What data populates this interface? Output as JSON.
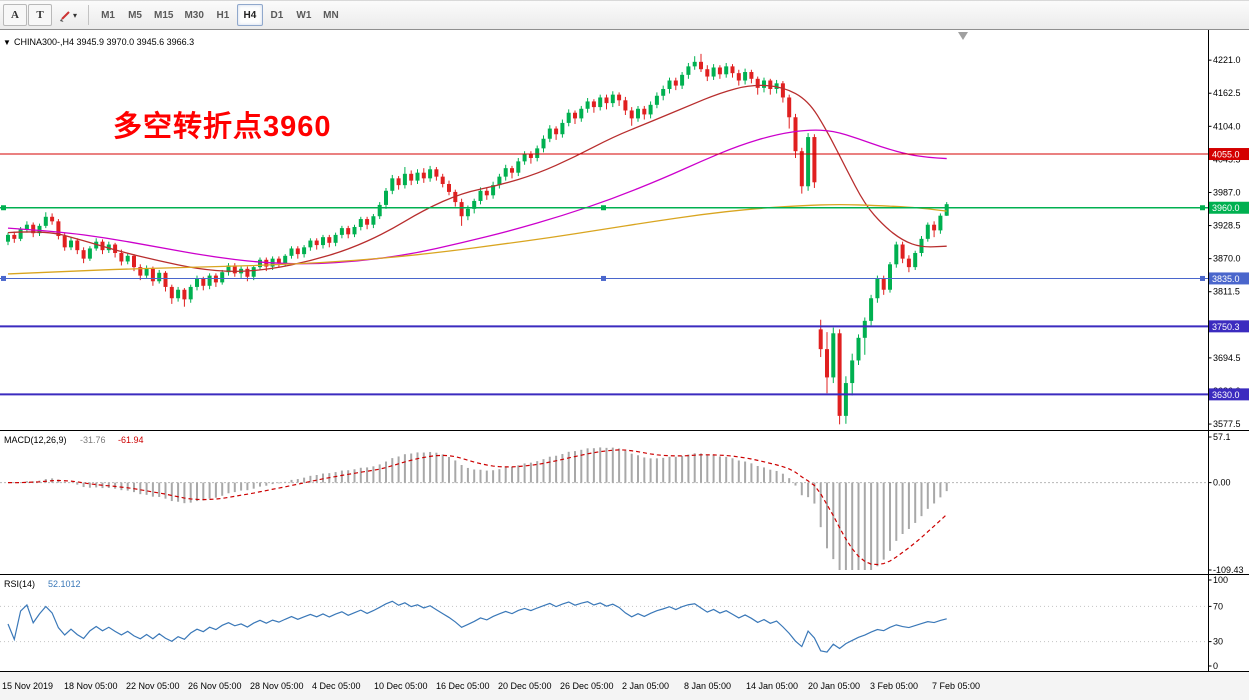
{
  "toolbar": {
    "tool_buttons": [
      "A",
      "T"
    ],
    "draw_button": {
      "icon": "pen-icon",
      "caret": "▾"
    },
    "timeframes": [
      "M1",
      "M5",
      "M15",
      "M30",
      "H1",
      "H4",
      "D1",
      "W1",
      "MN"
    ],
    "active_timeframe": "H4"
  },
  "chart_header": {
    "collapse_icon": "▼",
    "text": "CHINA300-,H4 3945.9 3970.0 3945.6 3966.3"
  },
  "annotation": {
    "text": "多空转折点3960",
    "color": "#ff0000"
  },
  "chart_data": {
    "type": "candlestick",
    "symbol": "CHINA300-",
    "timeframe": "H4",
    "ohlc_current": {
      "open": 3945.9,
      "high": 3970.0,
      "low": 3945.6,
      "close": 3966.3
    },
    "up_color": "#00b050",
    "down_color": "#e02020",
    "price_axis": {
      "min": 3567,
      "max": 4269,
      "ticks": [
        "4221.0",
        "4162.5",
        "4104.0",
        "4045.5",
        "3987.0",
        "3928.5",
        "3870.0",
        "3811.5",
        "3753.0",
        "3694.5",
        "3636.0",
        "3577.5"
      ]
    },
    "time_axis": [
      "15 Nov 2019",
      "18 Nov 05:00",
      "22 Nov 05:00",
      "26 Nov 05:00",
      "28 Nov 05:00",
      "4 Dec 05:00",
      "10 Dec 05:00",
      "16 Dec 05:00",
      "20 Dec 05:00",
      "26 Dec 05:00",
      "2 Jan 05:00",
      "8 Jan 05:00",
      "14 Jan 05:00",
      "20 Jan 05:00",
      "3 Feb 05:00",
      "7 Feb 05:00"
    ],
    "hlines": [
      {
        "value": 4055.0,
        "label": "4055.0",
        "color": "#d40000",
        "width": 1,
        "selected": false
      },
      {
        "value": 3960.0,
        "label": "3960.0",
        "color": "#00b050",
        "width": 1.5,
        "selected": true
      },
      {
        "value": 3835.0,
        "label": "3835.0",
        "color": "#4a66cc",
        "width": 1,
        "selected": true
      },
      {
        "value": 3750.3,
        "label": "3750.3",
        "color": "#3b2bbf",
        "width": 2,
        "selected": false
      },
      {
        "value": 3630.0,
        "label": "3630.0",
        "color": "#3b2bbf",
        "width": 2,
        "selected": false
      }
    ],
    "moving_averages": [
      {
        "name": "ma-fast-red",
        "color": "#b82e2e",
        "points": [
          [
            0,
            3916
          ],
          [
            6,
            3920
          ],
          [
            12,
            3902
          ],
          [
            18,
            3882
          ],
          [
            24,
            3866
          ],
          [
            30,
            3852
          ],
          [
            36,
            3846
          ],
          [
            42,
            3852
          ],
          [
            48,
            3866
          ],
          [
            54,
            3886
          ],
          [
            60,
            3916
          ],
          [
            66,
            3956
          ],
          [
            72,
            3986
          ],
          [
            78,
            4000
          ],
          [
            84,
            4020
          ],
          [
            90,
            4050
          ],
          [
            96,
            4085
          ],
          [
            102,
            4112
          ],
          [
            108,
            4140
          ],
          [
            113,
            4163
          ],
          [
            118,
            4178
          ],
          [
            123,
            4174
          ],
          [
            127,
            4150
          ],
          [
            130,
            4096
          ],
          [
            133,
            4030
          ],
          [
            136,
            3966
          ],
          [
            139,
            3928
          ],
          [
            142,
            3902
          ],
          [
            145,
            3890
          ],
          [
            149,
            3892
          ]
        ]
      },
      {
        "name": "ma-mid-magenta",
        "color": "#cc00cc",
        "points": [
          [
            0,
            3924
          ],
          [
            8,
            3918
          ],
          [
            16,
            3906
          ],
          [
            24,
            3890
          ],
          [
            32,
            3874
          ],
          [
            40,
            3863
          ],
          [
            48,
            3860
          ],
          [
            56,
            3866
          ],
          [
            64,
            3878
          ],
          [
            72,
            3898
          ],
          [
            80,
            3920
          ],
          [
            88,
            3946
          ],
          [
            96,
            3976
          ],
          [
            104,
            4012
          ],
          [
            110,
            4042
          ],
          [
            116,
            4070
          ],
          [
            122,
            4090
          ],
          [
            127,
            4098
          ],
          [
            131,
            4096
          ],
          [
            135,
            4082
          ],
          [
            139,
            4066
          ],
          [
            143,
            4054
          ],
          [
            146,
            4049
          ],
          [
            149,
            4047
          ]
        ]
      },
      {
        "name": "ma-slow-orange",
        "color": "#d9a520",
        "points": [
          [
            0,
            3843
          ],
          [
            10,
            3848
          ],
          [
            20,
            3852
          ],
          [
            30,
            3855
          ],
          [
            40,
            3858
          ],
          [
            50,
            3863
          ],
          [
            60,
            3871
          ],
          [
            70,
            3883
          ],
          [
            78,
            3895
          ],
          [
            86,
            3907
          ],
          [
            94,
            3921
          ],
          [
            102,
            3935
          ],
          [
            110,
            3948
          ],
          [
            118,
            3958
          ],
          [
            126,
            3964
          ],
          [
            132,
            3966
          ],
          [
            138,
            3964
          ],
          [
            143,
            3961
          ],
          [
            146,
            3958
          ],
          [
            149,
            3954
          ]
        ]
      }
    ],
    "candles": [
      [
        3900,
        3916,
        3894,
        3912
      ],
      [
        3912,
        3918,
        3898,
        3905
      ],
      [
        3905,
        3926,
        3901,
        3922
      ],
      [
        3922,
        3936,
        3916,
        3930
      ],
      [
        3930,
        3934,
        3908,
        3915
      ],
      [
        3915,
        3932,
        3910,
        3928
      ],
      [
        3928,
        3952,
        3924,
        3944
      ],
      [
        3944,
        3950,
        3930,
        3936
      ],
      [
        3936,
        3940,
        3904,
        3910
      ],
      [
        3910,
        3916,
        3884,
        3890
      ],
      [
        3890,
        3908,
        3885,
        3902
      ],
      [
        3902,
        3906,
        3878,
        3885
      ],
      [
        3885,
        3890,
        3862,
        3870
      ],
      [
        3870,
        3892,
        3866,
        3888
      ],
      [
        3888,
        3906,
        3884,
        3900
      ],
      [
        3900,
        3904,
        3878,
        3885
      ],
      [
        3885,
        3900,
        3880,
        3895
      ],
      [
        3895,
        3898,
        3872,
        3880
      ],
      [
        3880,
        3886,
        3858,
        3865
      ],
      [
        3865,
        3880,
        3860,
        3875
      ],
      [
        3875,
        3878,
        3848,
        3855
      ],
      [
        3855,
        3860,
        3832,
        3840
      ],
      [
        3840,
        3858,
        3836,
        3852
      ],
      [
        3852,
        3856,
        3822,
        3830
      ],
      [
        3830,
        3850,
        3826,
        3845
      ],
      [
        3845,
        3848,
        3812,
        3820
      ],
      [
        3820,
        3824,
        3790,
        3800
      ],
      [
        3800,
        3820,
        3794,
        3815
      ],
      [
        3815,
        3818,
        3785,
        3798
      ],
      [
        3798,
        3824,
        3792,
        3820
      ],
      [
        3820,
        3840,
        3814,
        3835
      ],
      [
        3835,
        3838,
        3814,
        3822
      ],
      [
        3822,
        3844,
        3816,
        3840
      ],
      [
        3840,
        3844,
        3820,
        3828
      ],
      [
        3828,
        3850,
        3824,
        3846
      ],
      [
        3846,
        3862,
        3840,
        3858
      ],
      [
        3858,
        3862,
        3838,
        3844
      ],
      [
        3844,
        3856,
        3836,
        3852
      ],
      [
        3852,
        3856,
        3830,
        3838
      ],
      [
        3838,
        3858,
        3832,
        3855
      ],
      [
        3855,
        3872,
        3850,
        3868
      ],
      [
        3868,
        3872,
        3848,
        3856
      ],
      [
        3856,
        3874,
        3850,
        3870
      ],
      [
        3870,
        3874,
        3854,
        3862
      ],
      [
        3862,
        3878,
        3856,
        3875
      ],
      [
        3875,
        3892,
        3870,
        3888
      ],
      [
        3888,
        3892,
        3870,
        3878
      ],
      [
        3878,
        3894,
        3872,
        3890
      ],
      [
        3890,
        3906,
        3884,
        3902
      ],
      [
        3902,
        3906,
        3886,
        3894
      ],
      [
        3894,
        3912,
        3888,
        3908
      ],
      [
        3908,
        3912,
        3890,
        3898
      ],
      [
        3898,
        3916,
        3892,
        3912
      ],
      [
        3912,
        3928,
        3906,
        3924
      ],
      [
        3924,
        3928,
        3906,
        3913
      ],
      [
        3913,
        3930,
        3908,
        3926
      ],
      [
        3926,
        3944,
        3920,
        3940
      ],
      [
        3940,
        3944,
        3922,
        3930
      ],
      [
        3930,
        3949,
        3924,
        3945
      ],
      [
        3945,
        3970,
        3940,
        3965
      ],
      [
        3965,
        3995,
        3958,
        3990
      ],
      [
        3990,
        4018,
        3984,
        4012
      ],
      [
        4012,
        4016,
        3992,
        4000
      ],
      [
        4000,
        4032,
        3994,
        4020
      ],
      [
        4020,
        4026,
        4000,
        4008
      ],
      [
        4008,
        4028,
        4002,
        4022
      ],
      [
        4022,
        4030,
        4004,
        4012
      ],
      [
        4012,
        4034,
        4006,
        4028
      ],
      [
        4028,
        4032,
        4008,
        4015
      ],
      [
        4015,
        4020,
        3996,
        4002
      ],
      [
        4002,
        4008,
        3982,
        3988
      ],
      [
        3988,
        3992,
        3962,
        3970
      ],
      [
        3970,
        3976,
        3928,
        3945
      ],
      [
        3945,
        3964,
        3938,
        3958
      ],
      [
        3958,
        3976,
        3950,
        3972
      ],
      [
        3972,
        3996,
        3966,
        3990
      ],
      [
        3990,
        3996,
        3974,
        3982
      ],
      [
        3982,
        4006,
        3976,
        4000
      ],
      [
        4000,
        4020,
        3994,
        4015
      ],
      [
        4015,
        4036,
        4008,
        4030
      ],
      [
        4030,
        4034,
        4012,
        4022
      ],
      [
        4022,
        4048,
        4016,
        4042
      ],
      [
        4042,
        4060,
        4036,
        4055
      ],
      [
        4055,
        4060,
        4038,
        4048
      ],
      [
        4048,
        4070,
        4042,
        4065
      ],
      [
        4065,
        4088,
        4058,
        4082
      ],
      [
        4082,
        4106,
        4076,
        4100
      ],
      [
        4100,
        4104,
        4080,
        4090
      ],
      [
        4090,
        4116,
        4084,
        4110
      ],
      [
        4110,
        4134,
        4104,
        4128
      ],
      [
        4128,
        4132,
        4108,
        4118
      ],
      [
        4118,
        4140,
        4112,
        4135
      ],
      [
        4135,
        4154,
        4128,
        4148
      ],
      [
        4148,
        4152,
        4128,
        4138
      ],
      [
        4138,
        4160,
        4132,
        4155
      ],
      [
        4155,
        4160,
        4134,
        4145
      ],
      [
        4145,
        4166,
        4138,
        4160
      ],
      [
        4160,
        4164,
        4140,
        4150
      ],
      [
        4150,
        4156,
        4124,
        4132
      ],
      [
        4132,
        4138,
        4105,
        4118
      ],
      [
        4118,
        4140,
        4112,
        4135
      ],
      [
        4135,
        4140,
        4116,
        4125
      ],
      [
        4125,
        4148,
        4118,
        4142
      ],
      [
        4142,
        4164,
        4136,
        4158
      ],
      [
        4158,
        4176,
        4150,
        4170
      ],
      [
        4170,
        4190,
        4162,
        4185
      ],
      [
        4185,
        4190,
        4168,
        4176
      ],
      [
        4176,
        4200,
        4170,
        4195
      ],
      [
        4195,
        4216,
        4188,
        4210
      ],
      [
        4210,
        4228,
        4204,
        4218
      ],
      [
        4218,
        4232,
        4200,
        4205
      ],
      [
        4205,
        4212,
        4184,
        4192
      ],
      [
        4192,
        4214,
        4186,
        4208
      ],
      [
        4208,
        4212,
        4188,
        4196
      ],
      [
        4196,
        4216,
        4190,
        4210
      ],
      [
        4210,
        4214,
        4190,
        4198
      ],
      [
        4198,
        4204,
        4176,
        4185
      ],
      [
        4185,
        4206,
        4178,
        4200
      ],
      [
        4200,
        4204,
        4180,
        4188
      ],
      [
        4188,
        4192,
        4160,
        4172
      ],
      [
        4172,
        4190,
        4164,
        4185
      ],
      [
        4185,
        4188,
        4160,
        4170
      ],
      [
        4170,
        4186,
        4162,
        4180
      ],
      [
        4180,
        4184,
        4146,
        4155
      ],
      [
        4155,
        4160,
        4100,
        4120
      ],
      [
        4120,
        4126,
        4048,
        4060
      ],
      [
        4060,
        4066,
        3985,
        3998
      ],
      [
        3998,
        4092,
        3990,
        4085
      ],
      [
        4085,
        4090,
        3995,
        4005
      ],
      [
        3745,
        3762,
        3696,
        3710
      ],
      [
        3710,
        3740,
        3632,
        3660
      ],
      [
        3660,
        3748,
        3650,
        3738
      ],
      [
        3738,
        3745,
        3577,
        3592
      ],
      [
        3592,
        3662,
        3578,
        3650
      ],
      [
        3650,
        3702,
        3628,
        3690
      ],
      [
        3690,
        3736,
        3682,
        3730
      ],
      [
        3730,
        3766,
        3700,
        3760
      ],
      [
        3760,
        3806,
        3752,
        3800
      ],
      [
        3800,
        3840,
        3792,
        3835
      ],
      [
        3835,
        3840,
        3806,
        3815
      ],
      [
        3815,
        3864,
        3810,
        3860
      ],
      [
        3860,
        3900,
        3854,
        3895
      ],
      [
        3895,
        3900,
        3862,
        3870
      ],
      [
        3870,
        3876,
        3846,
        3855
      ],
      [
        3855,
        3884,
        3850,
        3880
      ],
      [
        3880,
        3910,
        3874,
        3905
      ],
      [
        3905,
        3934,
        3900,
        3930
      ],
      [
        3930,
        3936,
        3908,
        3920
      ],
      [
        3920,
        3950,
        3914,
        3946
      ],
      [
        3945.9,
        3970.0,
        3945.6,
        3966.3
      ]
    ]
  },
  "macd_pane": {
    "label": "MACD(12,26,9)",
    "main_value": "-31.76",
    "signal_value": "-61.94",
    "axis_ticks": [
      "57.1",
      "0.00",
      "-109.43"
    ],
    "max": 57.1,
    "min": -109.43,
    "histogram_color": "#a8a8a8",
    "signal_color": "#cc0000"
  },
  "rsi_pane": {
    "label": "RSI(14)",
    "value": "52.1012",
    "axis_ticks": [
      "100",
      "70",
      "30",
      "0"
    ],
    "levels": [
      70,
      30
    ],
    "line_color": "#3a78b8"
  }
}
